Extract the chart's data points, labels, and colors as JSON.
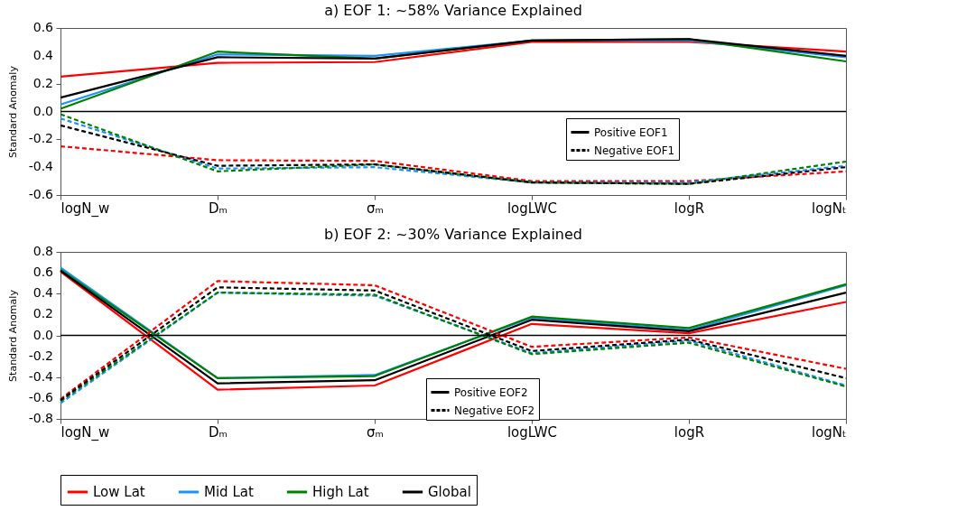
{
  "chart_data": [
    {
      "type": "line",
      "title": "a) EOF 1: ~58% Variance Explained",
      "ylabel": "Standard Anomaly",
      "categories": [
        "logN_w",
        "Dₘ",
        "σₘ",
        "logLWC",
        "logR",
        "logNₜ"
      ],
      "ylim": [
        -0.6,
        0.6
      ],
      "yticks": [
        -0.6,
        -0.4,
        -0.2,
        {
          "value": 0,
          "label": "0.0"
        },
        0.2,
        0.4,
        0.6
      ],
      "ref_lines": [
        {
          "axis": "y",
          "value": 0,
          "color": "#000000"
        }
      ],
      "legend": "right",
      "annotations": [
        "Positive EOF1",
        "Negative EOF1"
      ],
      "series": [
        {
          "color": "#ff0000",
          "line_style": "solid",
          "values": [
            0.25,
            0.35,
            0.355,
            0.5,
            0.5,
            0.43
          ]
        },
        {
          "color": "#1e90ff",
          "line_style": "solid",
          "values": [
            0.05,
            0.41,
            0.4,
            0.51,
            0.51,
            0.39
          ]
        },
        {
          "color": "#008000",
          "line_style": "solid",
          "values": [
            0.02,
            0.43,
            0.38,
            0.51,
            0.52,
            0.36
          ]
        },
        {
          "color": "#000000",
          "line_style": "solid",
          "values": [
            0.1,
            0.39,
            0.38,
            0.51,
            0.52,
            0.4
          ]
        },
        {
          "color": "#ff0000",
          "line_style": "dashed",
          "values": [
            -0.25,
            -0.35,
            -0.355,
            -0.5,
            -0.5,
            -0.43
          ]
        },
        {
          "color": "#1e90ff",
          "line_style": "dashed",
          "values": [
            -0.05,
            -0.41,
            -0.4,
            -0.51,
            -0.51,
            -0.39
          ]
        },
        {
          "color": "#008000",
          "line_style": "dashed",
          "values": [
            -0.02,
            -0.43,
            -0.38,
            -0.51,
            -0.52,
            -0.36
          ]
        },
        {
          "color": "#000000",
          "line_style": "dashed",
          "values": [
            -0.1,
            -0.39,
            -0.38,
            -0.51,
            -0.52,
            -0.4
          ]
        }
      ]
    },
    {
      "type": "line",
      "title": "b) EOF 2: ~30% Variance Explained",
      "ylabel": "Standard Anomaly",
      "categories": [
        "logN_w",
        "Dₘ",
        "σₘ",
        "logLWC",
        "logR",
        "logNₜ"
      ],
      "ylim": [
        -0.8,
        0.8
      ],
      "yticks": [
        -0.8,
        -0.6,
        -0.4,
        -0.2,
        {
          "value": 0,
          "label": "0.0"
        },
        0.2,
        0.4,
        0.6,
        0.8
      ],
      "ref_lines": [
        {
          "axis": "y",
          "value": 0,
          "color": "#000000"
        }
      ],
      "legend": "bottom",
      "annotations": [
        "Positive EOF2",
        "Negative EOF2"
      ],
      "series": [
        {
          "name": "Low Lat",
          "color": "#ff0000",
          "line_style": "solid",
          "values": [
            0.61,
            -0.52,
            -0.48,
            0.11,
            0.02,
            0.32
          ]
        },
        {
          "name": "Mid Lat",
          "color": "#1e90ff",
          "line_style": "solid",
          "values": [
            0.65,
            -0.41,
            -0.38,
            0.17,
            0.05,
            0.48
          ]
        },
        {
          "name": "High Lat",
          "color": "#008000",
          "line_style": "solid",
          "values": [
            0.63,
            -0.41,
            -0.39,
            0.18,
            0.07,
            0.49
          ]
        },
        {
          "name": "Global",
          "color": "#000000",
          "line_style": "solid",
          "values": [
            0.62,
            -0.46,
            -0.43,
            0.15,
            0.04,
            0.41
          ]
        },
        {
          "color": "#ff0000",
          "line_style": "dashed",
          "values": [
            -0.61,
            0.52,
            0.48,
            -0.11,
            -0.02,
            -0.32
          ]
        },
        {
          "color": "#1e90ff",
          "line_style": "dashed",
          "values": [
            -0.65,
            0.41,
            0.38,
            -0.17,
            -0.05,
            -0.48
          ]
        },
        {
          "color": "#008000",
          "line_style": "dashed",
          "values": [
            -0.63,
            0.41,
            0.39,
            -0.18,
            -0.07,
            -0.49
          ]
        },
        {
          "color": "#000000",
          "line_style": "dashed",
          "values": [
            -0.62,
            0.46,
            0.43,
            -0.15,
            -0.04,
            -0.41
          ]
        }
      ]
    }
  ]
}
